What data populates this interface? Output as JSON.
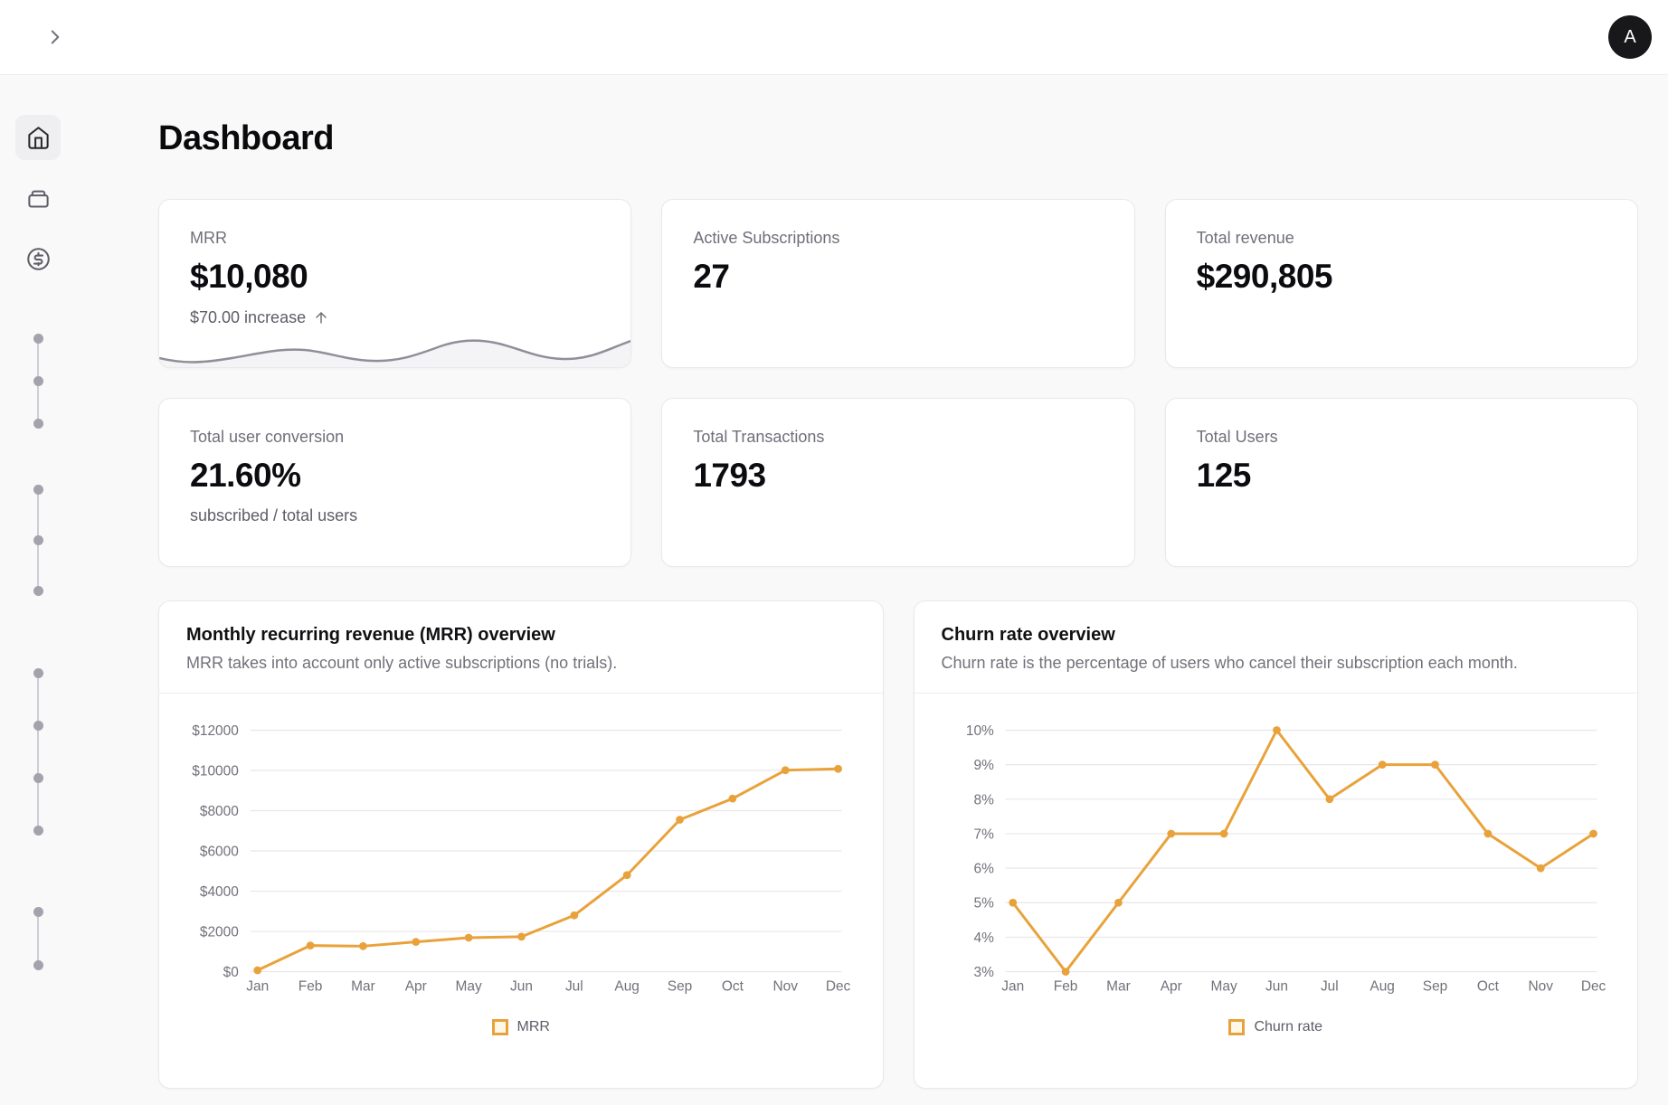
{
  "header": {
    "avatar_initial": "A"
  },
  "page": {
    "title": "Dashboard"
  },
  "sidebar": {
    "icons": [
      "home-icon",
      "wallet-icon",
      "dollar-circle-icon"
    ],
    "skeleton_groups": [
      3,
      3,
      4,
      2
    ]
  },
  "stat_cards": [
    {
      "label": "MRR",
      "value": "$10,080",
      "change": "$70.00 increase"
    },
    {
      "label": "Active Subscriptions",
      "value": "27"
    },
    {
      "label": "Total revenue",
      "value": "$290,805"
    },
    {
      "label": "Total user conversion",
      "value": "21.60%",
      "sub": "subscribed / total users"
    },
    {
      "label": "Total Transactions",
      "value": "1793"
    },
    {
      "label": "Total Users",
      "value": "125"
    }
  ],
  "colors": {
    "accent_orange": "#e9a23b",
    "legend_swatch_fill": "#fdf8e7",
    "sparkline_gray": "#8f8f99",
    "page_background": "#f9f9f9"
  },
  "chart_data": [
    {
      "type": "line",
      "title": "Monthly recurring revenue (MRR) overview",
      "subtitle": "MRR takes into account only active subscriptions (no trials).",
      "legend": "MRR",
      "x": [
        "Jan",
        "Feb",
        "Mar",
        "Apr",
        "May",
        "Jun",
        "Jul",
        "Aug",
        "Sep",
        "Oct",
        "Nov",
        "Dec"
      ],
      "series": [
        {
          "name": "MRR",
          "values": [
            70,
            1300,
            1270,
            1480,
            1690,
            1740,
            2800,
            4800,
            7550,
            8600,
            10010,
            10080
          ]
        }
      ],
      "ylim": [
        0,
        12000
      ],
      "ytick_values": [
        0,
        2000,
        4000,
        6000,
        8000,
        10000,
        12000
      ],
      "ytick_labels": [
        "$0",
        "$2000",
        "$4000",
        "$6000",
        "$8000",
        "$10000",
        "$12000"
      ],
      "grid": true,
      "legend_position": "bottom",
      "line_color": "#e9a23b",
      "grid_color": "#e7e7eb",
      "axis_color": "#71717a"
    },
    {
      "type": "line",
      "title": "Churn rate overview",
      "subtitle": "Churn rate is the percentage of users who cancel their subscription each month.",
      "legend": "Churn rate",
      "x": [
        "Jan",
        "Feb",
        "Mar",
        "Apr",
        "May",
        "Jun",
        "Jul",
        "Aug",
        "Sep",
        "Oct",
        "Nov",
        "Dec"
      ],
      "series": [
        {
          "name": "Churn rate",
          "values": [
            5,
            3,
            5,
            7,
            7,
            10,
            8,
            9,
            9,
            7,
            6,
            7
          ]
        }
      ],
      "ylim": [
        3,
        10
      ],
      "ytick_values": [
        3,
        4,
        5,
        6,
        7,
        8,
        9,
        10
      ],
      "ytick_labels": [
        "3%",
        "4%",
        "5%",
        "6%",
        "7%",
        "8%",
        "9%",
        "10%"
      ],
      "grid": true,
      "legend_position": "bottom",
      "line_color": "#e9a23b",
      "grid_color": "#e7e7eb",
      "axis_color": "#71717a"
    }
  ]
}
